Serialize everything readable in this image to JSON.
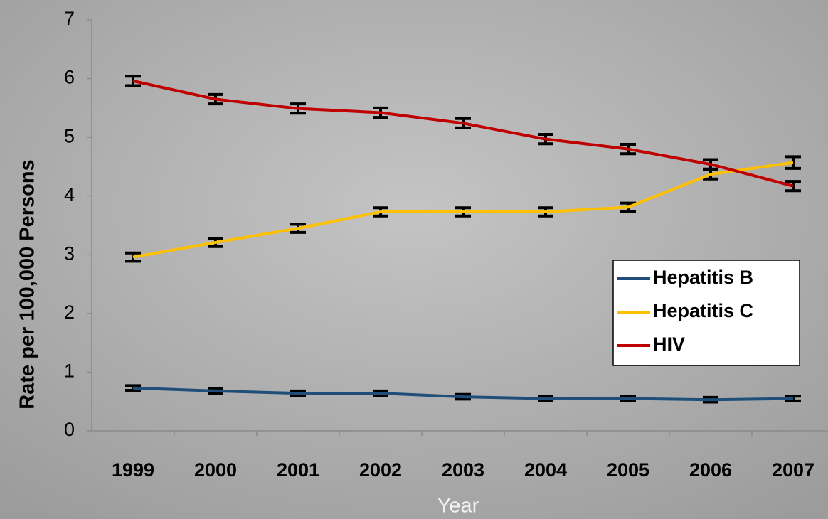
{
  "chart_data": {
    "type": "line",
    "xlabel": "Year",
    "ylabel": "Rate per 100,000 Persons",
    "categories": [
      "1999",
      "2000",
      "2001",
      "2002",
      "2003",
      "2004",
      "2005",
      "2006",
      "2007"
    ],
    "series": [
      {
        "name": "Hepatitis B",
        "color": "#1f4e79",
        "values": [
          0.73,
          0.68,
          0.64,
          0.64,
          0.58,
          0.55,
          0.55,
          0.53,
          0.55
        ],
        "errors": [
          0.04,
          0.04,
          0.04,
          0.04,
          0.04,
          0.04,
          0.04,
          0.04,
          0.04
        ]
      },
      {
        "name": "Hepatitis C",
        "color": "#ffc000",
        "values": [
          2.96,
          3.21,
          3.45,
          3.73,
          3.73,
          3.73,
          3.81,
          4.37,
          4.57
        ],
        "errors": [
          0.07,
          0.07,
          0.07,
          0.07,
          0.07,
          0.07,
          0.07,
          0.08,
          0.1
        ]
      },
      {
        "name": "HIV",
        "color": "#c00000",
        "values": [
          5.96,
          5.65,
          5.49,
          5.42,
          5.24,
          4.97,
          4.8,
          4.54,
          4.17
        ],
        "errors": [
          0.08,
          0.08,
          0.08,
          0.08,
          0.08,
          0.08,
          0.08,
          0.08,
          0.08
        ]
      }
    ],
    "ylim": [
      0,
      7
    ],
    "yticks": [
      0,
      1,
      2,
      3,
      4,
      5,
      6,
      7
    ],
    "grid": false,
    "legend": "right"
  }
}
